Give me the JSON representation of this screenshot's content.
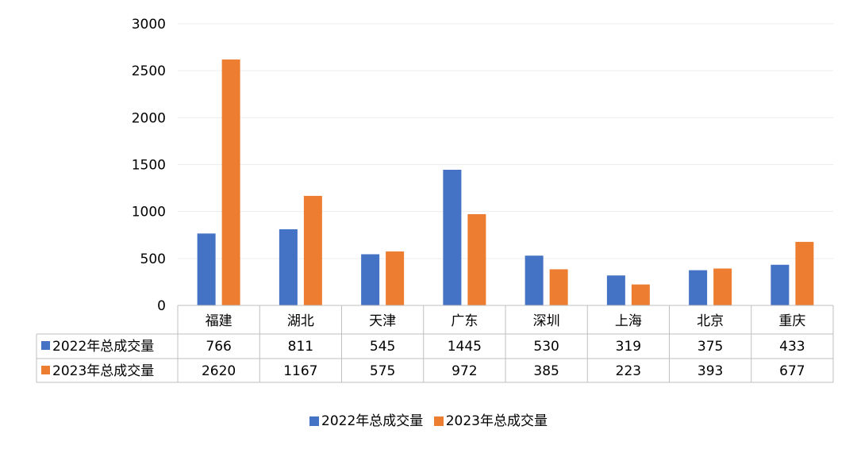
{
  "chart_data": {
    "type": "bar",
    "title": "",
    "xlabel": "",
    "ylabel": "",
    "ylim": [
      0,
      3000
    ],
    "yticks": [
      0,
      500,
      1000,
      1500,
      2000,
      2500,
      3000
    ],
    "categories": [
      "福建",
      "湖北",
      "天津",
      "广东",
      "深圳",
      "上海",
      "北京",
      "重庆"
    ],
    "series": [
      {
        "name": "2022年总成交量",
        "color": "#4472C4",
        "values": [
          766,
          811,
          545,
          1445,
          530,
          319,
          375,
          433
        ]
      },
      {
        "name": "2023年总成交量",
        "color": "#ED7D31",
        "values": [
          2620,
          1167,
          575,
          972,
          385,
          223,
          393,
          677
        ]
      }
    ],
    "grid": true,
    "legend": "bottom",
    "data_table": true
  }
}
